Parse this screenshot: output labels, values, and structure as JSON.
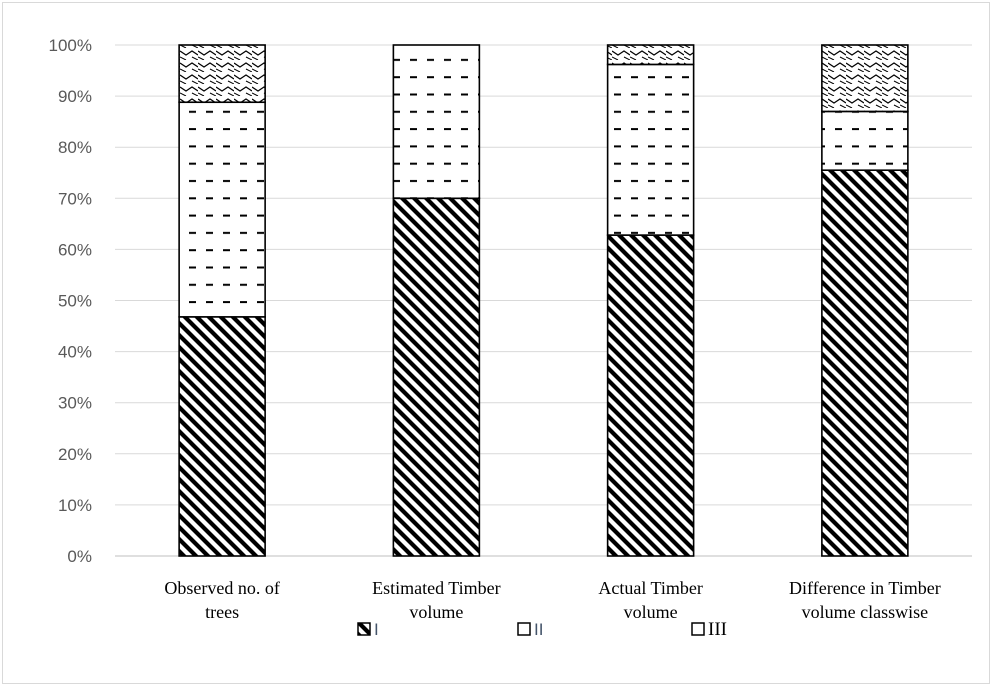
{
  "chart_data": {
    "type": "bar",
    "stacked": true,
    "normalized": true,
    "categories": [
      [
        "Observed no. of",
        "trees"
      ],
      [
        "Estimated Timber",
        "volume"
      ],
      [
        "Actual Timber",
        "volume"
      ],
      [
        "Difference in Timber",
        "volume classwise"
      ]
    ],
    "series": [
      {
        "name": "I",
        "values": [
          46.8,
          70.0,
          62.8,
          75.5
        ],
        "pattern": "diagonal-stripes"
      },
      {
        "name": "II",
        "values": [
          42.0,
          30.0,
          33.4,
          11.5
        ],
        "pattern": "dashes"
      },
      {
        "name": "III",
        "values": [
          11.2,
          0.0,
          3.8,
          13.0
        ],
        "pattern": "zigzag"
      }
    ],
    "yticks": [
      "0%",
      "10%",
      "20%",
      "30%",
      "40%",
      "50%",
      "60%",
      "70%",
      "80%",
      "90%",
      "100%"
    ],
    "ylim": [
      0,
      100
    ],
    "grid": true,
    "legend_position": "bottom",
    "title": "",
    "xlabel": "",
    "ylabel": ""
  }
}
